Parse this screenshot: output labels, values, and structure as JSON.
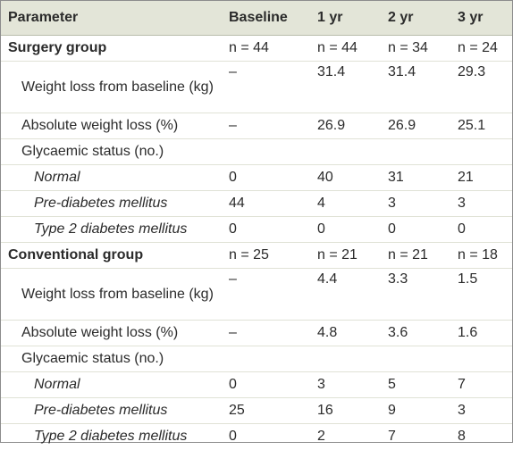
{
  "table": {
    "headers": [
      "Parameter",
      "Baseline",
      "1 yr",
      "2 yr",
      "3 yr"
    ],
    "surgery": {
      "label": "Surgery group",
      "n": [
        "n = 44",
        "n = 44",
        "n = 34",
        "n = 24"
      ],
      "weight_loss": {
        "label": "Weight loss from baseline (kg)",
        "values": [
          "–",
          "31.4",
          "31.4",
          "29.3"
        ]
      },
      "abs_weight_loss": {
        "label": "Absolute weight loss (%)",
        "values": [
          "–",
          "26.9",
          "26.9",
          "25.1"
        ]
      },
      "glycaemic": {
        "label": "Glycaemic status (no.)"
      },
      "normal": {
        "label": "Normal",
        "values": [
          "0",
          "40",
          "31",
          "21"
        ]
      },
      "prediabetes": {
        "label": "Pre-diabetes mellitus",
        "values": [
          "44",
          "4",
          "3",
          "3"
        ]
      },
      "t2dm": {
        "label": "Type 2 diabetes mellitus",
        "values": [
          "0",
          "0",
          "0",
          "0"
        ]
      }
    },
    "conventional": {
      "label": "Conventional group",
      "n": [
        "n = 25",
        "n = 21",
        "n = 21",
        "n = 18"
      ],
      "weight_loss": {
        "label": "Weight loss from baseline (kg)",
        "values": [
          "–",
          "4.4",
          "3.3",
          "1.5"
        ]
      },
      "abs_weight_loss": {
        "label": "Absolute weight loss (%)",
        "values": [
          "–",
          "4.8",
          "3.6",
          "1.6"
        ]
      },
      "glycaemic": {
        "label": "Glycaemic status (no.)"
      },
      "normal": {
        "label": "Normal",
        "values": [
          "0",
          "3",
          "5",
          "7"
        ]
      },
      "prediabetes": {
        "label": "Pre-diabetes mellitus",
        "values": [
          "25",
          "16",
          "9",
          "3"
        ]
      },
      "t2dm": {
        "label": "Type 2 diabetes mellitus",
        "values": [
          "0",
          "2",
          "7",
          "8"
        ]
      }
    }
  }
}
